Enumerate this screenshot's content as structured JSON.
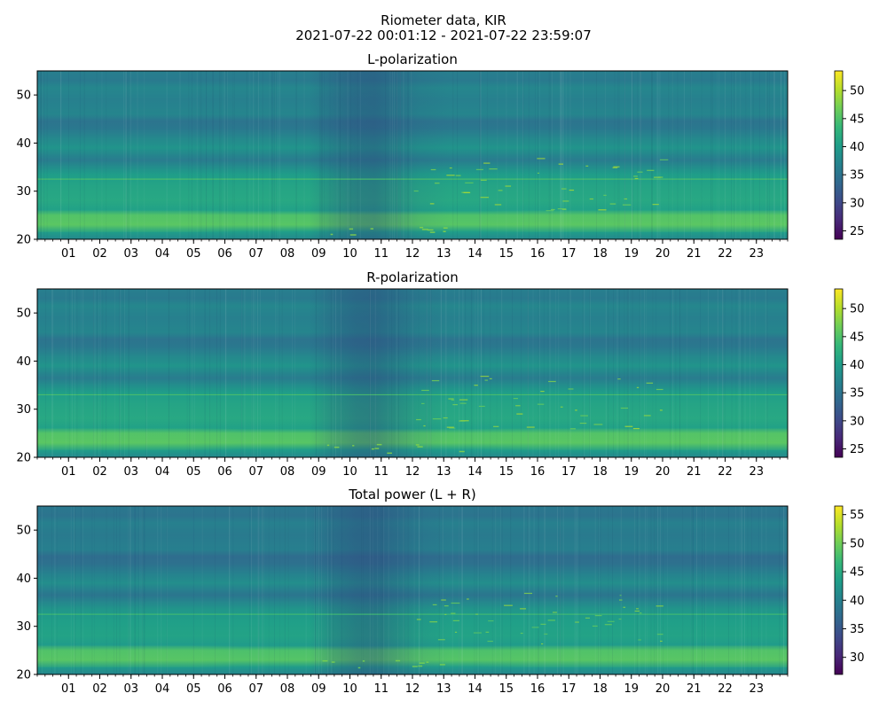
{
  "figure": {
    "title_line1": "Riometer data, KIR",
    "title_line2": "2021-07-22 00:01:12 - 2021-07-22 23:59:07"
  },
  "colormap": {
    "name": "viridis",
    "stops": [
      "#440154",
      "#482878",
      "#3e4a89",
      "#31688e",
      "#26828e",
      "#1f9e89",
      "#35b779",
      "#6ece58",
      "#b5de2b",
      "#fde725"
    ]
  },
  "chart_data": [
    {
      "type": "heatmap",
      "title": "L-polarization",
      "xlabel": "",
      "ylabel": "",
      "x_tick_labels": [
        "01",
        "02",
        "03",
        "04",
        "05",
        "06",
        "07",
        "08",
        "09",
        "10",
        "11",
        "12",
        "13",
        "14",
        "15",
        "16",
        "17",
        "18",
        "19",
        "20",
        "21",
        "22",
        "23"
      ],
      "x_range_hours": [
        0,
        24
      ],
      "y_ticks": [
        20,
        30,
        40,
        50
      ],
      "ylim": [
        20,
        55
      ],
      "colorbar_ticks": [
        25,
        30,
        35,
        40,
        45,
        50
      ],
      "clim": [
        23.5,
        53.5
      ],
      "description_values": {
        "background_level": 37,
        "low_band_level": 42.5,
        "dip_center_hour": 10.5,
        "line_at_y": 32.5
      }
    },
    {
      "type": "heatmap",
      "title": "R-polarization",
      "xlabel": "",
      "ylabel": "",
      "x_tick_labels": [
        "01",
        "02",
        "03",
        "04",
        "05",
        "06",
        "07",
        "08",
        "09",
        "10",
        "11",
        "12",
        "13",
        "14",
        "15",
        "16",
        "17",
        "18",
        "19",
        "20",
        "21",
        "22",
        "23"
      ],
      "x_range_hours": [
        0,
        24
      ],
      "y_ticks": [
        20,
        30,
        40,
        50
      ],
      "ylim": [
        20,
        55
      ],
      "colorbar_ticks": [
        25,
        30,
        35,
        40,
        45,
        50
      ],
      "clim": [
        23.5,
        53.5
      ],
      "description_values": {
        "background_level": 37,
        "low_band_level": 42.5,
        "dip_center_hour": 10.5,
        "line_at_y": 33
      }
    },
    {
      "type": "heatmap",
      "title": "Total power (L + R)",
      "xlabel": "",
      "ylabel": "",
      "x_tick_labels": [
        "01",
        "02",
        "03",
        "04",
        "05",
        "06",
        "07",
        "08",
        "09",
        "10",
        "11",
        "12",
        "13",
        "14",
        "15",
        "16",
        "17",
        "18",
        "19",
        "20",
        "21",
        "22",
        "23"
      ],
      "x_range_hours": [
        0,
        24
      ],
      "y_ticks": [
        20,
        30,
        40,
        50
      ],
      "ylim": [
        20,
        55
      ],
      "colorbar_ticks": [
        30,
        35,
        40,
        45,
        50,
        55
      ],
      "clim": [
        27,
        56.5
      ],
      "description_values": {
        "background_level": 39.5,
        "low_band_level": 45.5,
        "dip_center_hour": 10.5,
        "line_at_y": 32.5
      }
    }
  ]
}
